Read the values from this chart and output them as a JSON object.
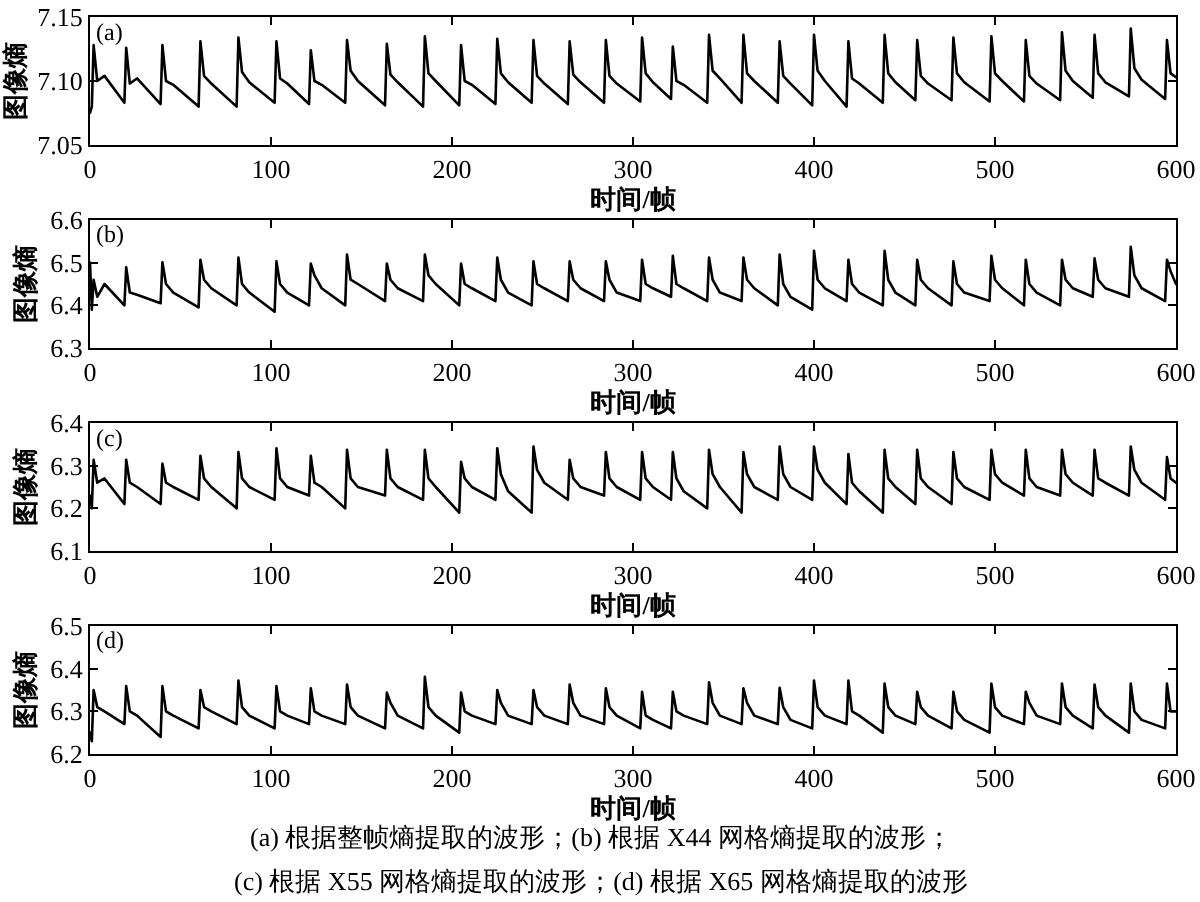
{
  "chart_data": [
    {
      "type": "line",
      "title": "(a)",
      "xlabel": "时间/帧",
      "ylabel": "图像熵",
      "color": "#000000",
      "x": [
        0,
        1,
        2,
        4,
        8,
        19,
        20,
        22,
        26,
        39,
        40,
        42,
        46,
        60,
        61,
        63,
        67,
        81,
        82,
        84,
        88,
        102,
        103,
        105,
        109,
        121,
        122,
        124,
        128,
        141,
        142,
        144,
        148,
        163,
        164,
        166,
        170,
        184,
        185,
        187,
        191,
        204,
        205,
        207,
        211,
        224,
        225,
        227,
        231,
        244,
        245,
        247,
        251,
        264,
        265,
        267,
        271,
        284,
        285,
        287,
        291,
        304,
        305,
        307,
        311,
        321,
        322,
        324,
        328,
        341,
        342,
        344,
        348,
        360,
        361,
        363,
        367,
        380,
        381,
        383,
        387,
        399,
        400,
        402,
        406,
        418,
        419,
        421,
        425,
        438,
        439,
        441,
        445,
        456,
        457,
        459,
        463,
        476,
        477,
        479,
        483,
        497,
        498,
        500,
        504,
        516,
        517,
        519,
        523,
        536,
        537,
        539,
        543,
        554,
        555,
        557,
        561,
        574,
        575,
        577,
        581,
        594,
        595,
        597,
        600
      ],
      "values": [
        7.075,
        7.08,
        7.128,
        7.1,
        7.104,
        7.083,
        7.126,
        7.098,
        7.102,
        7.082,
        7.128,
        7.1,
        7.097,
        7.08,
        7.131,
        7.104,
        7.098,
        7.08,
        7.134,
        7.107,
        7.099,
        7.083,
        7.131,
        7.102,
        7.098,
        7.082,
        7.124,
        7.1,
        7.097,
        7.083,
        7.132,
        7.108,
        7.1,
        7.081,
        7.129,
        7.105,
        7.099,
        7.08,
        7.135,
        7.106,
        7.1,
        7.081,
        7.128,
        7.1,
        7.097,
        7.082,
        7.133,
        7.106,
        7.099,
        7.083,
        7.132,
        7.104,
        7.098,
        7.082,
        7.131,
        7.105,
        7.099,
        7.083,
        7.132,
        7.104,
        7.098,
        7.084,
        7.134,
        7.106,
        7.099,
        7.086,
        7.127,
        7.1,
        7.097,
        7.083,
        7.136,
        7.108,
        7.102,
        7.083,
        7.136,
        7.106,
        7.1,
        7.083,
        7.131,
        7.104,
        7.098,
        7.081,
        7.136,
        7.108,
        7.1,
        7.08,
        7.131,
        7.102,
        7.098,
        7.083,
        7.136,
        7.106,
        7.099,
        7.085,
        7.132,
        7.104,
        7.098,
        7.085,
        7.134,
        7.106,
        7.099,
        7.084,
        7.135,
        7.106,
        7.1,
        7.084,
        7.132,
        7.104,
        7.098,
        7.085,
        7.138,
        7.108,
        7.1,
        7.087,
        7.136,
        7.106,
        7.099,
        7.088,
        7.141,
        7.11,
        7.101,
        7.086,
        7.132,
        7.106,
        7.103
      ],
      "xlim": [
        0,
        600
      ],
      "xticks": [
        0,
        100,
        200,
        300,
        400,
        500,
        600
      ],
      "ylim": [
        7.05,
        7.15
      ],
      "yticks": [
        7.05,
        {
          "value": 7.1,
          "label": "7.10"
        },
        7.15
      ]
    },
    {
      "type": "line",
      "title": "(b)",
      "xlabel": "时间/帧",
      "ylabel": "图像熵",
      "color": "#000000",
      "x": [
        0,
        1,
        2,
        4,
        8,
        19,
        20,
        22,
        26,
        39,
        40,
        42,
        46,
        60,
        61,
        63,
        67,
        81,
        82,
        84,
        88,
        102,
        103,
        105,
        109,
        121,
        122,
        124,
        128,
        141,
        142,
        144,
        148,
        163,
        164,
        166,
        170,
        184,
        185,
        187,
        191,
        204,
        205,
        207,
        211,
        224,
        225,
        227,
        231,
        244,
        245,
        247,
        251,
        264,
        265,
        267,
        271,
        284,
        285,
        287,
        291,
        304,
        305,
        307,
        311,
        321,
        322,
        324,
        328,
        341,
        342,
        344,
        348,
        360,
        361,
        363,
        367,
        380,
        381,
        383,
        387,
        399,
        400,
        402,
        406,
        418,
        419,
        421,
        425,
        438,
        439,
        441,
        445,
        456,
        457,
        459,
        463,
        476,
        477,
        479,
        483,
        497,
        498,
        500,
        504,
        516,
        517,
        519,
        523,
        536,
        537,
        539,
        543,
        554,
        555,
        557,
        561,
        574,
        575,
        577,
        581,
        594,
        595,
        597,
        600
      ],
      "values": [
        6.5,
        6.39,
        6.46,
        6.42,
        6.45,
        6.4,
        6.489,
        6.43,
        6.425,
        6.405,
        6.501,
        6.45,
        6.43,
        6.395,
        6.507,
        6.46,
        6.44,
        6.4,
        6.512,
        6.45,
        6.43,
        6.385,
        6.503,
        6.45,
        6.43,
        6.4,
        6.498,
        6.47,
        6.44,
        6.4,
        6.519,
        6.46,
        6.45,
        6.41,
        6.498,
        6.46,
        6.44,
        6.41,
        6.519,
        6.47,
        6.45,
        6.4,
        6.498,
        6.45,
        6.44,
        6.41,
        6.512,
        6.46,
        6.43,
        6.4,
        6.503,
        6.45,
        6.44,
        6.41,
        6.503,
        6.46,
        6.44,
        6.41,
        6.503,
        6.46,
        6.43,
        6.41,
        6.507,
        6.45,
        6.44,
        6.42,
        6.516,
        6.45,
        6.44,
        6.41,
        6.512,
        6.46,
        6.43,
        6.41,
        6.512,
        6.46,
        6.44,
        6.4,
        6.519,
        6.45,
        6.42,
        6.39,
        6.528,
        6.46,
        6.44,
        6.41,
        6.507,
        6.45,
        6.43,
        6.4,
        6.528,
        6.46,
        6.43,
        6.4,
        6.507,
        6.46,
        6.44,
        6.4,
        6.503,
        6.45,
        6.43,
        6.41,
        6.516,
        6.46,
        6.44,
        6.4,
        6.507,
        6.45,
        6.43,
        6.4,
        6.507,
        6.46,
        6.44,
        6.42,
        6.51,
        6.46,
        6.44,
        6.42,
        6.537,
        6.47,
        6.44,
        6.41,
        6.507,
        6.48,
        6.45
      ],
      "xlim": [
        0,
        600
      ],
      "xticks": [
        0,
        100,
        200,
        300,
        400,
        500,
        600
      ],
      "ylim": [
        6.3,
        6.6
      ],
      "yticks": [
        6.3,
        6.4,
        6.5,
        6.6
      ]
    },
    {
      "type": "line",
      "title": "(c)",
      "xlabel": "时间/帧",
      "ylabel": "图像熵",
      "color": "#000000",
      "x": [
        0,
        1,
        2,
        4,
        8,
        19,
        20,
        22,
        26,
        39,
        40,
        42,
        46,
        60,
        61,
        63,
        67,
        81,
        82,
        84,
        88,
        102,
        103,
        105,
        109,
        121,
        122,
        124,
        128,
        141,
        142,
        144,
        148,
        163,
        164,
        166,
        170,
        184,
        185,
        187,
        191,
        204,
        205,
        207,
        211,
        224,
        225,
        227,
        231,
        244,
        245,
        247,
        251,
        264,
        265,
        267,
        271,
        284,
        285,
        287,
        291,
        304,
        305,
        307,
        311,
        321,
        322,
        324,
        328,
        341,
        342,
        344,
        348,
        360,
        361,
        363,
        367,
        380,
        381,
        383,
        387,
        399,
        400,
        402,
        406,
        418,
        419,
        421,
        425,
        438,
        439,
        441,
        445,
        456,
        457,
        459,
        463,
        476,
        477,
        479,
        483,
        497,
        498,
        500,
        504,
        516,
        517,
        519,
        523,
        536,
        537,
        539,
        543,
        554,
        555,
        557,
        561,
        574,
        575,
        577,
        581,
        594,
        595,
        597,
        600
      ],
      "values": [
        6.23,
        6.2,
        6.314,
        6.26,
        6.27,
        6.21,
        6.314,
        6.26,
        6.25,
        6.21,
        6.305,
        6.26,
        6.25,
        6.22,
        6.323,
        6.27,
        6.25,
        6.2,
        6.332,
        6.27,
        6.25,
        6.22,
        6.341,
        6.27,
        6.25,
        6.23,
        6.323,
        6.26,
        6.25,
        6.2,
        6.337,
        6.27,
        6.25,
        6.23,
        6.337,
        6.27,
        6.25,
        6.22,
        6.337,
        6.27,
        6.25,
        6.19,
        6.309,
        6.27,
        6.25,
        6.22,
        6.341,
        6.28,
        6.24,
        6.19,
        6.345,
        6.29,
        6.26,
        6.22,
        6.314,
        6.27,
        6.25,
        6.23,
        6.332,
        6.27,
        6.25,
        6.22,
        6.332,
        6.27,
        6.25,
        6.22,
        6.332,
        6.27,
        6.24,
        6.2,
        6.337,
        6.28,
        6.25,
        6.19,
        6.332,
        6.28,
        6.25,
        6.22,
        6.345,
        6.28,
        6.25,
        6.22,
        6.345,
        6.29,
        6.26,
        6.21,
        6.327,
        6.26,
        6.24,
        6.19,
        6.337,
        6.27,
        6.25,
        6.21,
        6.337,
        6.27,
        6.25,
        6.21,
        6.332,
        6.27,
        6.25,
        6.22,
        6.337,
        6.28,
        6.26,
        6.23,
        6.337,
        6.27,
        6.25,
        6.23,
        6.337,
        6.28,
        6.26,
        6.23,
        6.337,
        6.27,
        6.26,
        6.23,
        6.345,
        6.29,
        6.26,
        6.22,
        6.32,
        6.27,
        6.26
      ],
      "xlim": [
        0,
        600
      ],
      "xticks": [
        0,
        100,
        200,
        300,
        400,
        500,
        600
      ],
      "ylim": [
        6.1,
        6.4
      ],
      "yticks": [
        6.1,
        6.2,
        6.3,
        6.4
      ]
    },
    {
      "type": "line",
      "title": "(d)",
      "xlabel": "时间/帧",
      "ylabel": "图像熵",
      "color": "#000000",
      "x": [
        0,
        1,
        2,
        4,
        8,
        19,
        20,
        22,
        26,
        39,
        40,
        42,
        46,
        60,
        61,
        63,
        67,
        81,
        82,
        84,
        88,
        102,
        103,
        105,
        109,
        121,
        122,
        124,
        128,
        141,
        142,
        144,
        148,
        163,
        164,
        166,
        170,
        184,
        185,
        187,
        191,
        204,
        205,
        207,
        211,
        224,
        225,
        227,
        231,
        244,
        245,
        247,
        251,
        264,
        265,
        267,
        271,
        284,
        285,
        287,
        291,
        304,
        305,
        307,
        311,
        321,
        322,
        324,
        328,
        341,
        342,
        344,
        348,
        360,
        361,
        363,
        367,
        380,
        381,
        383,
        387,
        399,
        400,
        402,
        406,
        418,
        419,
        421,
        425,
        438,
        439,
        441,
        445,
        456,
        457,
        459,
        463,
        476,
        477,
        479,
        483,
        497,
        498,
        500,
        504,
        516,
        517,
        519,
        523,
        536,
        537,
        539,
        543,
        554,
        555,
        557,
        561,
        574,
        575,
        577,
        581,
        594,
        595,
        597,
        600
      ],
      "values": [
        6.25,
        6.23,
        6.35,
        6.31,
        6.3,
        6.27,
        6.359,
        6.3,
        6.29,
        6.24,
        6.359,
        6.3,
        6.29,
        6.26,
        6.35,
        6.31,
        6.3,
        6.27,
        6.372,
        6.31,
        6.29,
        6.26,
        6.359,
        6.3,
        6.29,
        6.27,
        6.354,
        6.3,
        6.29,
        6.27,
        6.363,
        6.31,
        6.29,
        6.26,
        6.344,
        6.32,
        6.29,
        6.26,
        6.381,
        6.31,
        6.29,
        6.25,
        6.344,
        6.3,
        6.29,
        6.27,
        6.35,
        6.32,
        6.29,
        6.27,
        6.35,
        6.31,
        6.29,
        6.27,
        6.363,
        6.32,
        6.29,
        6.27,
        6.354,
        6.31,
        6.29,
        6.26,
        6.346,
        6.29,
        6.28,
        6.26,
        6.346,
        6.3,
        6.29,
        6.27,
        6.368,
        6.32,
        6.29,
        6.27,
        6.354,
        6.32,
        6.29,
        6.27,
        6.355,
        6.31,
        6.28,
        6.26,
        6.372,
        6.31,
        6.29,
        6.27,
        6.372,
        6.3,
        6.29,
        6.25,
        6.365,
        6.31,
        6.29,
        6.27,
        6.346,
        6.31,
        6.29,
        6.26,
        6.346,
        6.3,
        6.28,
        6.25,
        6.365,
        6.31,
        6.29,
        6.27,
        6.346,
        6.32,
        6.29,
        6.27,
        6.365,
        6.31,
        6.29,
        6.26,
        6.363,
        6.31,
        6.29,
        6.25,
        6.365,
        6.3,
        6.28,
        6.26,
        6.365,
        6.3,
        6.3
      ],
      "xlim": [
        0,
        600
      ],
      "xticks": [
        0,
        100,
        200,
        300,
        400,
        500,
        600
      ],
      "ylim": [
        6.2,
        6.5
      ],
      "yticks": [
        6.2,
        6.3,
        6.4,
        6.5
      ],
      "annotations": [
        "(a) 根据整帧熵提取的波形；(b) 根据 X44 网格熵提取的波形；",
        "(c) 根据 X55 网格熵提取的波形；(d) 根据 X65 网格熵提取的波形"
      ]
    }
  ]
}
